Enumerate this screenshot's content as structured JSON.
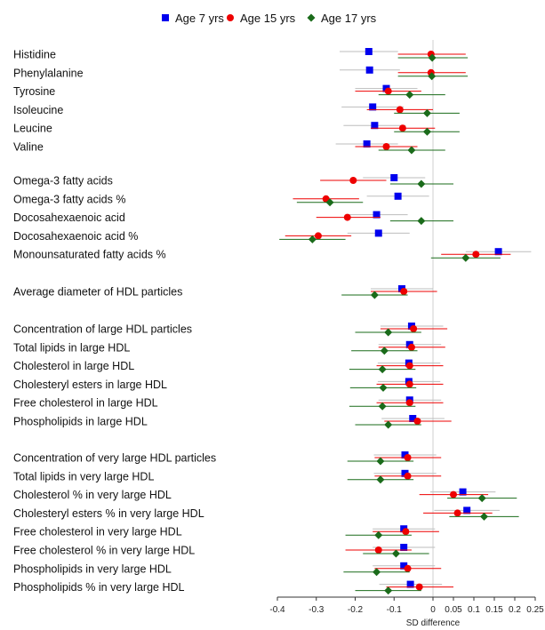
{
  "chart_data": {
    "type": "forest",
    "xlabel": "SD difference",
    "xlim": [
      -0.4,
      0.25
    ],
    "xticks": [
      -0.4,
      -0.3,
      -0.2,
      -0.1,
      0,
      0.05,
      0.1,
      0.15,
      0.2,
      0.25
    ],
    "xtick_labels": [
      "-0.4",
      "-0.3",
      "-0.2",
      "-0.1",
      "0",
      "0.05",
      "0.1",
      "0.15",
      "0.2",
      "0.25"
    ],
    "legend": {
      "placement": "top"
    },
    "series": [
      {
        "name": "Age 7 yrs",
        "color": "#0000ee",
        "marker": "square"
      },
      {
        "name": "Age 15 yrs",
        "color": "#ee0000",
        "marker": "circle"
      },
      {
        "name": "Age 17 yrs",
        "color": "#1a6b1a",
        "marker": "diamond"
      }
    ],
    "rows": [
      {
        "label": "Histidine",
        "values": [
          [
            -0.165,
            -0.24,
            -0.09
          ],
          [
            -0.005,
            -0.09,
            0.08
          ],
          [
            -0.002,
            -0.09,
            0.085
          ]
        ]
      },
      {
        "label": "Phenylalanine",
        "values": [
          [
            -0.163,
            -0.24,
            -0.085
          ],
          [
            -0.005,
            -0.09,
            0.08
          ],
          [
            -0.003,
            -0.09,
            0.085
          ]
        ]
      },
      {
        "label": "Tyrosine",
        "values": [
          [
            -0.12,
            -0.2,
            -0.04
          ],
          [
            -0.115,
            -0.2,
            -0.03
          ],
          [
            -0.06,
            -0.14,
            0.03
          ]
        ]
      },
      {
        "label": "Isoleucine",
        "values": [
          [
            -0.155,
            -0.235,
            -0.075
          ],
          [
            -0.085,
            -0.17,
            0.0
          ],
          [
            -0.015,
            -0.1,
            0.065
          ]
        ]
      },
      {
        "label": "Leucine",
        "values": [
          [
            -0.15,
            -0.23,
            -0.07
          ],
          [
            -0.078,
            -0.16,
            0.005
          ],
          [
            -0.015,
            -0.1,
            0.065
          ]
        ]
      },
      {
        "label": "Valine",
        "values": [
          [
            -0.17,
            -0.25,
            -0.09
          ],
          [
            -0.12,
            -0.2,
            -0.04
          ],
          [
            -0.055,
            -0.14,
            0.03
          ]
        ]
      },
      {
        "label": "Omega-3 fatty acids",
        "values": [
          [
            -0.1,
            -0.18,
            -0.02
          ],
          [
            -0.205,
            -0.29,
            -0.12
          ],
          [
            -0.03,
            -0.11,
            0.05
          ]
        ]
      },
      {
        "label": "Omega-3 fatty acids %",
        "values": [
          [
            -0.09,
            -0.17,
            -0.01
          ],
          [
            -0.275,
            -0.36,
            -0.19
          ],
          [
            -0.265,
            -0.35,
            -0.18
          ]
        ]
      },
      {
        "label": "Docosahexaenoic acid",
        "values": [
          [
            -0.145,
            -0.225,
            -0.065
          ],
          [
            -0.22,
            -0.3,
            -0.135
          ],
          [
            -0.03,
            -0.11,
            0.05
          ]
        ]
      },
      {
        "label": "Docosahexaenoic acid %",
        "values": [
          [
            -0.14,
            -0.22,
            -0.06
          ],
          [
            -0.295,
            -0.38,
            -0.21
          ],
          [
            -0.31,
            -0.395,
            -0.225
          ]
        ]
      },
      {
        "label": "Monounsaturated fatty acids %",
        "values": [
          [
            0.16,
            0.08,
            0.24
          ],
          [
            0.105,
            0.02,
            0.19
          ],
          [
            0.08,
            -0.005,
            0.165
          ]
        ]
      },
      {
        "label": "Average diameter of HDL particles",
        "values": [
          [
            -0.08,
            -0.16,
            0.0
          ],
          [
            -0.075,
            -0.16,
            0.01
          ],
          [
            -0.15,
            -0.235,
            -0.065
          ]
        ]
      },
      {
        "label": "Concentration of large HDL particles",
        "values": [
          [
            -0.055,
            -0.135,
            0.025
          ],
          [
            -0.05,
            -0.135,
            0.035
          ],
          [
            -0.115,
            -0.2,
            -0.03
          ]
        ]
      },
      {
        "label": "Total lipids in large HDL",
        "values": [
          [
            -0.06,
            -0.14,
            0.02
          ],
          [
            -0.055,
            -0.14,
            0.03
          ],
          [
            -0.125,
            -0.21,
            -0.04
          ]
        ]
      },
      {
        "label": "Cholesterol in large HDL",
        "values": [
          [
            -0.062,
            -0.142,
            0.018
          ],
          [
            -0.06,
            -0.145,
            0.025
          ],
          [
            -0.13,
            -0.215,
            -0.045
          ]
        ]
      },
      {
        "label": "Cholesteryl esters in large HDL",
        "values": [
          [
            -0.062,
            -0.142,
            0.018
          ],
          [
            -0.06,
            -0.145,
            0.025
          ],
          [
            -0.128,
            -0.213,
            -0.043
          ]
        ]
      },
      {
        "label": "Free cholesterol in large HDL",
        "values": [
          [
            -0.06,
            -0.14,
            0.02
          ],
          [
            -0.06,
            -0.145,
            0.025
          ],
          [
            -0.13,
            -0.215,
            -0.045
          ]
        ]
      },
      {
        "label": "Phospholipids in large HDL",
        "values": [
          [
            -0.052,
            -0.132,
            0.028
          ],
          [
            -0.04,
            -0.125,
            0.045
          ],
          [
            -0.115,
            -0.2,
            -0.03
          ]
        ]
      },
      {
        "label": "Concentration of very large HDL particles",
        "values": [
          [
            -0.072,
            -0.152,
            0.008
          ],
          [
            -0.065,
            -0.15,
            0.02
          ],
          [
            -0.135,
            -0.22,
            -0.05
          ]
        ]
      },
      {
        "label": "Total lipids in very large HDL",
        "values": [
          [
            -0.072,
            -0.152,
            0.008
          ],
          [
            -0.065,
            -0.15,
            0.02
          ],
          [
            -0.135,
            -0.22,
            -0.05
          ]
        ]
      },
      {
        "label": "Cholesterol % in very large HDL",
        "values": [
          [
            0.073,
            -0.007,
            0.153
          ],
          [
            0.05,
            -0.035,
            0.135
          ],
          [
            0.12,
            0.035,
            0.205
          ]
        ]
      },
      {
        "label": "Cholesteryl esters % in very large HDL",
        "values": [
          [
            0.083,
            0.003,
            0.163
          ],
          [
            0.06,
            -0.025,
            0.145
          ],
          [
            0.125,
            0.04,
            0.21
          ]
        ]
      },
      {
        "label": "Free cholesterol in very large HDL",
        "values": [
          [
            -0.075,
            -0.155,
            0.005
          ],
          [
            -0.07,
            -0.155,
            0.015
          ],
          [
            -0.14,
            -0.225,
            -0.055
          ]
        ]
      },
      {
        "label": "Free cholesterol % in very large HDL",
        "values": [
          [
            -0.075,
            -0.155,
            0.005
          ],
          [
            -0.14,
            -0.225,
            -0.055
          ],
          [
            -0.095,
            -0.18,
            -0.01
          ]
        ]
      },
      {
        "label": "Phospholipids in very large HDL",
        "values": [
          [
            -0.075,
            -0.155,
            0.005
          ],
          [
            -0.065,
            -0.15,
            0.02
          ],
          [
            -0.145,
            -0.23,
            -0.06
          ]
        ]
      },
      {
        "label": "Phospholipids % in very large HDL",
        "values": [
          [
            -0.058,
            -0.138,
            0.022
          ],
          [
            -0.035,
            -0.12,
            0.05
          ],
          [
            -0.115,
            -0.2,
            -0.03
          ]
        ]
      }
    ]
  }
}
